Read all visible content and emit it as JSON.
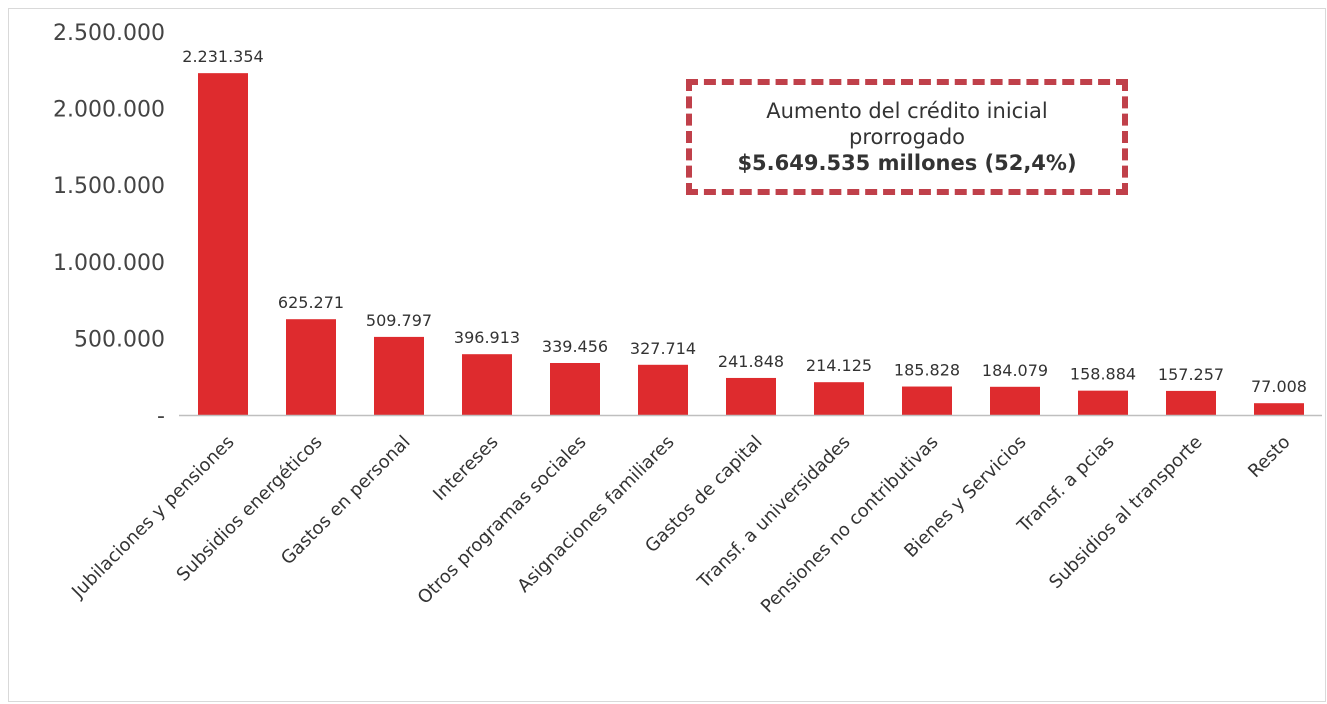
{
  "chart_data": {
    "type": "bar",
    "categories": [
      "Jubilaciones y pensiones",
      "Subsidios energéticos",
      "Gastos en personal",
      "Intereses",
      "Otros programas sociales",
      "Asignaciones familiares",
      "Gastos de capital",
      "Transf. a universidades",
      "Pensiones no contributivas",
      "Bienes y Servicios",
      "Transf. a pcias",
      "Subsidios al transporte",
      "Resto"
    ],
    "values": [
      2231354,
      625271,
      509797,
      396913,
      339456,
      327714,
      241848,
      214125,
      185828,
      184079,
      158884,
      157257,
      77008
    ],
    "data_labels": [
      "2.231.354",
      "625.271",
      "509.797",
      "396.913",
      "339.456",
      "327.714",
      "241.848",
      "214.125",
      "185.828",
      "184.079",
      "158.884",
      "157.257",
      "77.008"
    ],
    "yticks": [
      0,
      500000,
      1000000,
      1500000,
      2000000,
      2500000
    ],
    "ytick_labels": [
      "-",
      "500.000",
      "1.000.000",
      "1.500.000",
      "2.000.000",
      "2.500.000"
    ],
    "ylim": [
      0,
      2500000
    ],
    "bar_color": "#de2b2e",
    "grid": false,
    "legend": "none"
  },
  "callout": {
    "line1": "Aumento del crédito inicial",
    "line2": "prorrogado",
    "line3": "$5.649.535 millones (52,4%)",
    "border_color": "#c0404a"
  }
}
